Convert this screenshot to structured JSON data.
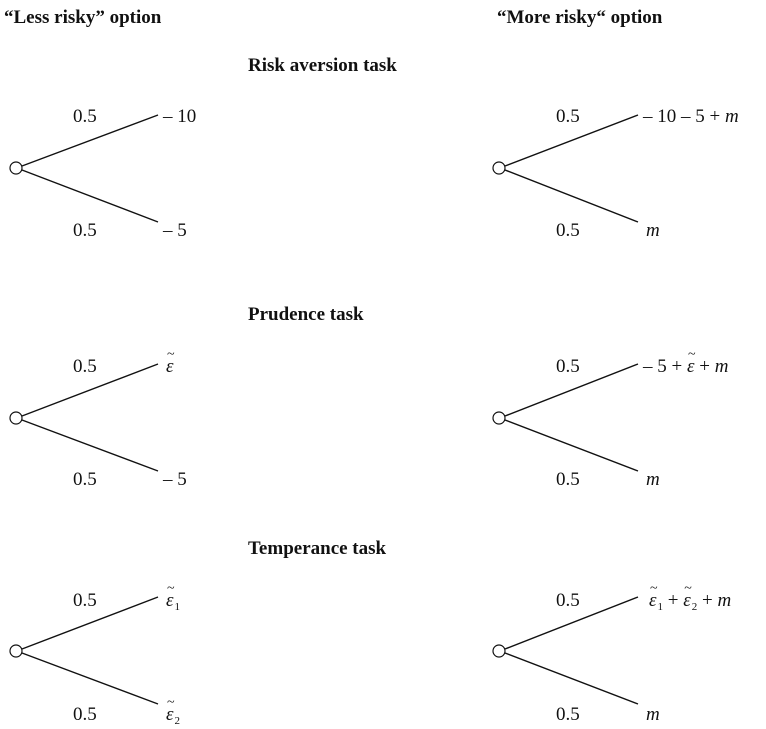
{
  "headers": {
    "left": "“Less risky” option",
    "right": "“More risky“ option"
  },
  "tasks": [
    {
      "title": "Risk aversion task",
      "left": {
        "p_up": "0.5",
        "p_down": "0.5",
        "out_up": "– 10",
        "out_down": "– 5"
      },
      "right": {
        "p_up": "0.5",
        "p_down": "0.5",
        "out_up": "– 10 – 5 + ",
        "out_up_var": "m",
        "out_down_var": "m"
      }
    },
    {
      "title": "Prudence task",
      "left": {
        "p_up": "0.5",
        "p_down": "0.5",
        "out_up_sym": "ε",
        "out_down": "– 5"
      },
      "right": {
        "p_up": "0.5",
        "p_down": "0.5",
        "out_up_pre": "– 5 + ",
        "out_up_sym": "ε",
        "out_up_post": " + ",
        "out_up_var": "m",
        "out_down_var": "m"
      }
    },
    {
      "title": "Temperance task",
      "left": {
        "p_up": "0.5",
        "p_down": "0.5",
        "out_up_sym": "ε",
        "out_up_sub": "1",
        "out_down_sym": "ε",
        "out_down_sub": "2"
      },
      "right": {
        "p_up": "0.5",
        "p_down": "0.5",
        "sym": "ε",
        "sub1": "1",
        "plus": " + ",
        "sub2": "2",
        "out_up_post": " + ",
        "out_up_var": "m",
        "out_down_var": "m"
      }
    }
  ],
  "tilde": "~"
}
